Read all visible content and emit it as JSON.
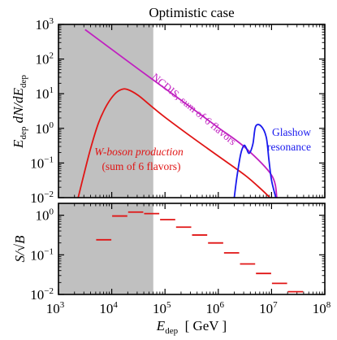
{
  "chart_data": [
    {
      "type": "line",
      "title": "Optimistic case",
      "ylabel": {
        "main": "E",
        "sub1": "dep",
        "mid": " dN/dE",
        "sub2": "dep"
      },
      "xlim": [
        3,
        8
      ],
      "ylim": [
        -2,
        3
      ],
      "xscale": "log",
      "yscale": "log",
      "grid": false,
      "shaded_region": [
        3,
        4.78
      ],
      "series": [
        {
          "name": "NCDIS, sum of 6 flavors",
          "color": "#c020c0",
          "x": [
            3.5,
            4.0,
            4.5,
            5.0,
            5.5,
            6.0,
            6.5,
            7.0,
            7.1
          ],
          "y": [
            2.85,
            2.28,
            1.71,
            1.15,
            0.59,
            0.02,
            -0.55,
            -1.35,
            -2.0
          ]
        },
        {
          "name": "W-boson production (sum of 6 flavors)",
          "color": "#e01515",
          "x": [
            3.37,
            3.45,
            3.6,
            3.75,
            3.9,
            4.05,
            4.18,
            4.3,
            4.5,
            4.75,
            5.0,
            5.5,
            6.0,
            6.5,
            6.8,
            6.97
          ],
          "y": [
            -2.0,
            -1.5,
            -0.6,
            0.15,
            0.65,
            0.98,
            1.12,
            1.12,
            0.95,
            0.63,
            0.32,
            -0.25,
            -0.8,
            -1.35,
            -1.75,
            -2.0
          ]
        },
        {
          "name": "Glashow resonance",
          "color": "#1a1aee",
          "x": [
            6.3,
            6.35,
            6.42,
            6.48,
            6.52,
            6.58,
            6.65,
            6.7,
            6.8,
            6.9,
            6.95,
            7.0,
            7.08
          ],
          "y": [
            -2.0,
            -1.4,
            -0.75,
            -0.5,
            -0.55,
            -0.72,
            -0.45,
            0.05,
            0.07,
            -0.25,
            -0.9,
            -1.5,
            -2.0
          ]
        }
      ],
      "annotations": [
        {
          "id": "ncdis",
          "text": "NCDIS, sum of 6 flavors",
          "color": "#c020c0"
        },
        {
          "id": "w1",
          "text": "W-boson production",
          "color": "#e01515"
        },
        {
          "id": "w2",
          "text": "(sum of 6 flavors)",
          "color": "#e01515"
        },
        {
          "id": "g1",
          "text": "Glashow",
          "color": "#1a1aee"
        },
        {
          "id": "g2",
          "text": "resonance",
          "color": "#1a1aee"
        }
      ],
      "yticks": [
        {
          "value": -2,
          "base": "10",
          "exp": "−2"
        },
        {
          "value": -1,
          "base": "10",
          "exp": "−1"
        },
        {
          "value": 0,
          "base": "10",
          "exp": "0"
        },
        {
          "value": 1,
          "base": "10",
          "exp": "1"
        },
        {
          "value": 2,
          "base": "10",
          "exp": "2"
        },
        {
          "value": 3,
          "base": "10",
          "exp": "3"
        }
      ]
    },
    {
      "type": "scatter",
      "ylabel": "S/√B",
      "xlabel": {
        "main": "E",
        "sub": "dep",
        "unit": "  [ GeV ]"
      },
      "xlim": [
        3,
        8
      ],
      "ylim": [
        -2,
        0.3
      ],
      "xscale": "log",
      "yscale": "log",
      "grid": false,
      "shaded_region": [
        3,
        4.78
      ],
      "series": [
        {
          "name": "",
          "color": "#e01515",
          "bins": [
            {
              "x0": 3.7,
              "x1": 4.0,
              "y": -0.62
            },
            {
              "x0": 4.0,
              "x1": 4.3,
              "y": -0.02
            },
            {
              "x0": 4.3,
              "x1": 4.6,
              "y": 0.08
            },
            {
              "x0": 4.6,
              "x1": 4.9,
              "y": 0.04
            },
            {
              "x0": 4.9,
              "x1": 5.2,
              "y": -0.11
            },
            {
              "x0": 5.2,
              "x1": 5.5,
              "y": -0.3
            },
            {
              "x0": 5.5,
              "x1": 5.8,
              "y": -0.5
            },
            {
              "x0": 5.8,
              "x1": 6.1,
              "y": -0.7
            },
            {
              "x0": 6.1,
              "x1": 6.4,
              "y": -0.95
            },
            {
              "x0": 6.4,
              "x1": 6.7,
              "y": -1.23
            },
            {
              "x0": 6.7,
              "x1": 7.0,
              "y": -1.47
            },
            {
              "x0": 7.0,
              "x1": 7.3,
              "y": -1.72
            },
            {
              "x0": 7.3,
              "x1": 7.6,
              "y": -1.93
            }
          ]
        }
      ],
      "xticks": [
        {
          "value": 3,
          "base": "10",
          "exp": "3"
        },
        {
          "value": 4,
          "base": "10",
          "exp": "4"
        },
        {
          "value": 5,
          "base": "10",
          "exp": "5"
        },
        {
          "value": 6,
          "base": "10",
          "exp": "6"
        },
        {
          "value": 7,
          "base": "10",
          "exp": "7"
        },
        {
          "value": 8,
          "base": "10",
          "exp": "8"
        }
      ],
      "yticks": [
        {
          "value": -2,
          "base": "10",
          "exp": "−2"
        },
        {
          "value": -1,
          "base": "10",
          "exp": "−1"
        },
        {
          "value": 0,
          "base": "10",
          "exp": "0"
        }
      ]
    }
  ]
}
